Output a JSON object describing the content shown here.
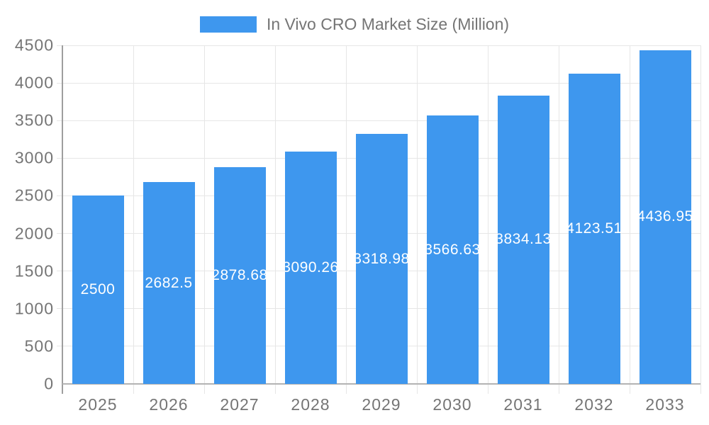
{
  "legend": {
    "series_label": "In Vivo CRO Market Size (Million)"
  },
  "chart_data": {
    "type": "bar",
    "title": "In Vivo CRO Market Size (Million)",
    "xlabel": "",
    "ylabel": "",
    "categories": [
      "2025",
      "2026",
      "2027",
      "2028",
      "2029",
      "2030",
      "2031",
      "2032",
      "2033"
    ],
    "values": [
      2500,
      2682.5,
      2878.68,
      3090.26,
      3318.98,
      3566.63,
      3834.13,
      4123.51,
      4436.95
    ],
    "value_labels": [
      "2500",
      "2682.5",
      "2878.68",
      "3090.26",
      "3318.98",
      "3566.63",
      "3834.13",
      "4123.51",
      "4436.95"
    ],
    "ylim": [
      0,
      4500
    ],
    "yticks": [
      0,
      500,
      1000,
      1500,
      2000,
      2500,
      3000,
      3500,
      4000,
      4500
    ],
    "grid": true,
    "legend_position": "top-center",
    "colors": {
      "bar": "#3e97ee",
      "bar_label_text": "#ffffff",
      "axis_text": "#757575",
      "gridline": "#e6e6e6",
      "y_axis_line": "#9e9e9e",
      "x_axis_line": "#b3b3b3",
      "background": "#ffffff"
    }
  }
}
